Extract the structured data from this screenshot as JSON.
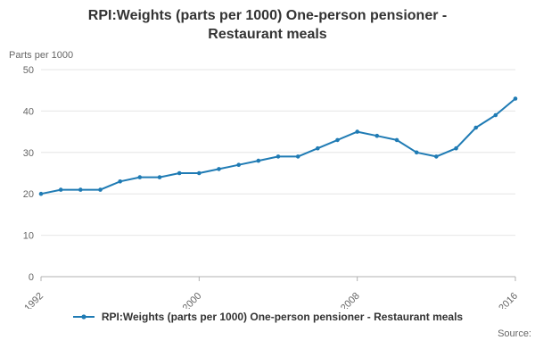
{
  "title": "RPI:Weights (parts per 1000) One-person pensioner - Restaurant meals",
  "y_axis_unit_label": "Parts per 1000",
  "source_label": "Source:",
  "legend": {
    "label": "RPI:Weights (parts per 1000) One-person pensioner - Restaurant meals"
  },
  "colors": {
    "line": "#1f7bb4",
    "grid": "#e6e6e6",
    "axis": "#b0b0b0",
    "tick_text": "#666666",
    "title_text": "#333333"
  },
  "chart_data": {
    "type": "line",
    "title": "RPI:Weights (parts per 1000) One-person pensioner - Restaurant meals",
    "xlabel": "",
    "ylabel": "Parts per 1000",
    "x": [
      1992,
      1993,
      1994,
      1995,
      1996,
      1997,
      1998,
      1999,
      2000,
      2001,
      2002,
      2003,
      2004,
      2005,
      2006,
      2007,
      2008,
      2009,
      2010,
      2011,
      2012,
      2013,
      2014,
      2015,
      2016
    ],
    "series": [
      {
        "name": "RPI:Weights (parts per 1000) One-person pensioner - Restaurant meals",
        "values": [
          20,
          21,
          21,
          21,
          23,
          24,
          24,
          25,
          25,
          26,
          27,
          28,
          29,
          29,
          31,
          33,
          35,
          34,
          33,
          30,
          29,
          31,
          36,
          39,
          43
        ]
      }
    ],
    "xlim": [
      1992,
      2016
    ],
    "ylim": [
      0,
      50
    ],
    "yticks": [
      0,
      10,
      20,
      30,
      40,
      50
    ],
    "xticks": [
      1992,
      2000,
      2008,
      2016
    ],
    "grid": true,
    "legend_position": "bottom",
    "marker": "circle"
  }
}
